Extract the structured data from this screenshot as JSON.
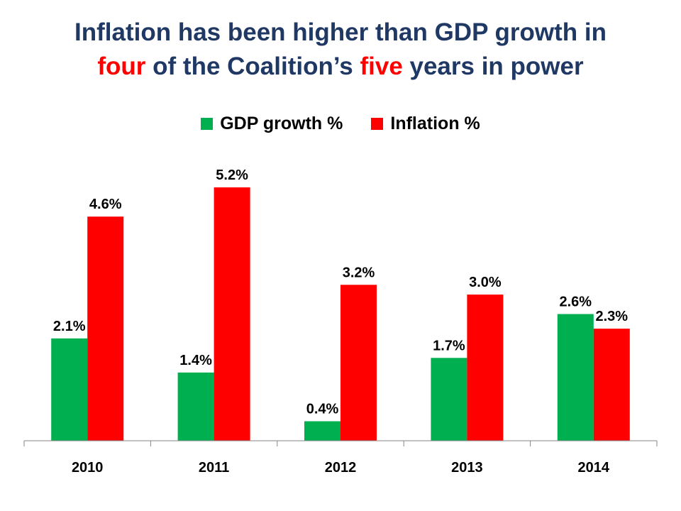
{
  "title": {
    "line1": "Inflation has been higher than GDP growth in",
    "line2_word1": "four",
    "line2_mid": " of the Coalition’s ",
    "line2_word2": "five",
    "line2_end": " years in power"
  },
  "colors": {
    "title": "#1f3864",
    "highlight": "#ff0000",
    "gdp": "#00b050",
    "inflation": "#ff0000"
  },
  "chart_data": {
    "type": "bar",
    "categories": [
      "2010",
      "2011",
      "2012",
      "2013",
      "2014"
    ],
    "series": [
      {
        "name": "GDP growth %",
        "values": [
          2.1,
          1.4,
          0.4,
          1.7,
          2.6
        ],
        "labels": [
          "2.1%",
          "1.4%",
          "0.4%",
          "1.7%",
          "2.6%"
        ],
        "color": "#00b050"
      },
      {
        "name": "Inflation %",
        "values": [
          4.6,
          5.2,
          3.2,
          3.0,
          2.3
        ],
        "labels": [
          "4.6%",
          "5.2%",
          "3.2%",
          "3.0%",
          "2.3%"
        ],
        "color": "#ff0000"
      }
    ],
    "ylim": [
      0,
      5.2
    ],
    "legend": "top",
    "grid": false
  }
}
